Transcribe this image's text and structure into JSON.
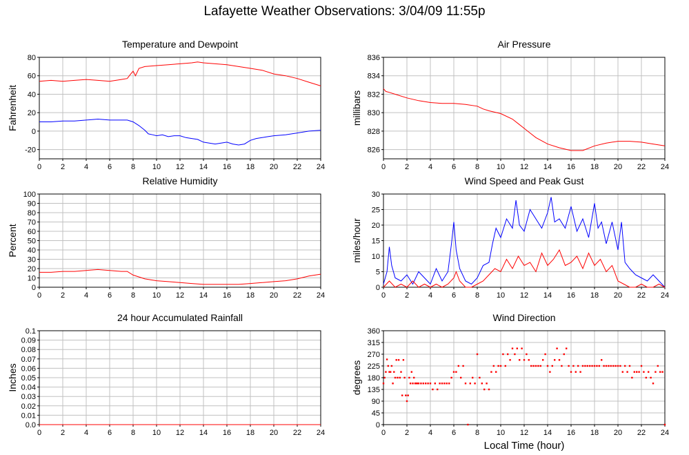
{
  "page": {
    "title": "Lafayette Weather Observations: 3/04/09 11:55p",
    "xlabel": "Local Time (hour)"
  },
  "colors": {
    "red": "#ff0000",
    "blue": "#0000ff",
    "grid": "#c0c0c0"
  },
  "chart_data": [
    {
      "type": "line",
      "title": "Temperature and Dewpoint",
      "ylabel": "Fahrenheit",
      "xlim": [
        0,
        24
      ],
      "ylim": [
        -30,
        80
      ],
      "xticks": [
        0,
        2,
        4,
        6,
        8,
        10,
        12,
        14,
        16,
        18,
        20,
        22,
        24
      ],
      "yticks": [
        -20,
        0,
        20,
        40,
        60,
        80
      ],
      "grid": true,
      "series": [
        {
          "color": "red",
          "x": [
            0,
            1,
            2,
            3,
            4,
            5,
            6,
            7,
            7.5,
            7.8,
            8.0,
            8.2,
            8.5,
            9,
            10,
            11,
            12,
            13,
            13.5,
            14,
            15,
            16,
            17,
            18,
            19,
            20,
            21,
            22,
            23,
            24
          ],
          "y": [
            54,
            55,
            54,
            55,
            56,
            55,
            54,
            56,
            57,
            62,
            65,
            60,
            68,
            70,
            71,
            72,
            73,
            74,
            75,
            74,
            73,
            72,
            70,
            68,
            66,
            62,
            60,
            57,
            53,
            49
          ]
        },
        {
          "color": "blue",
          "x": [
            0,
            1,
            2,
            3,
            4,
            5,
            6,
            7,
            7.5,
            8,
            8.5,
            9,
            9.3,
            9.7,
            10,
            10.5,
            11,
            11.5,
            12,
            12.5,
            13,
            13.5,
            14,
            14.5,
            15,
            15.5,
            16,
            16.5,
            17,
            17.5,
            18,
            18.5,
            19,
            19.5,
            20,
            21,
            22,
            23,
            24
          ],
          "y": [
            10,
            10,
            11,
            11,
            12,
            13,
            12,
            12,
            12,
            10,
            6,
            1,
            -3,
            -4,
            -5,
            -4,
            -6,
            -5,
            -5,
            -7,
            -8,
            -9,
            -12,
            -13,
            -14,
            -13,
            -12,
            -14,
            -15,
            -14,
            -10,
            -8,
            -7,
            -6,
            -5,
            -4,
            -2,
            0,
            1
          ]
        }
      ]
    },
    {
      "type": "line",
      "title": "Air Pressure",
      "ylabel": "millibars",
      "xlim": [
        0,
        24
      ],
      "ylim": [
        825,
        836
      ],
      "xticks": [
        0,
        2,
        4,
        6,
        8,
        10,
        12,
        14,
        16,
        18,
        20,
        22,
        24
      ],
      "yticks": [
        826,
        828,
        830,
        832,
        834,
        836
      ],
      "grid": true,
      "series": [
        {
          "color": "red",
          "x": [
            0,
            0.2,
            0.5,
            1,
            2,
            3,
            4,
            5,
            6,
            7,
            8,
            8.5,
            9,
            10,
            11,
            11.5,
            12,
            12.5,
            13,
            14,
            15,
            16,
            17,
            18,
            19,
            20,
            21,
            22,
            23,
            24
          ],
          "y": [
            832.6,
            832.3,
            832.2,
            832.0,
            831.6,
            831.3,
            831.1,
            831.0,
            831.0,
            830.9,
            830.7,
            830.4,
            830.2,
            829.9,
            829.3,
            828.8,
            828.3,
            827.8,
            827.3,
            826.6,
            826.2,
            825.9,
            825.9,
            826.4,
            826.7,
            826.9,
            826.9,
            826.8,
            826.6,
            826.4
          ]
        }
      ]
    },
    {
      "type": "line",
      "title": "Relative Humidity",
      "ylabel": "Percent",
      "xlim": [
        0,
        24
      ],
      "ylim": [
        0,
        100
      ],
      "xticks": [
        0,
        2,
        4,
        6,
        8,
        10,
        12,
        14,
        16,
        18,
        20,
        22,
        24
      ],
      "yticks": [
        0,
        10,
        20,
        30,
        40,
        50,
        60,
        70,
        80,
        90,
        100
      ],
      "grid": true,
      "series": [
        {
          "color": "red",
          "x": [
            0,
            1,
            2,
            3,
            4,
            5,
            6,
            7,
            7.5,
            8,
            8.5,
            9,
            10,
            11,
            12,
            13,
            14,
            15,
            16,
            17,
            18,
            19,
            20,
            21,
            22,
            23,
            24
          ],
          "y": [
            16,
            16,
            17,
            17,
            18,
            19,
            18,
            17,
            17,
            13,
            11,
            9,
            7,
            6,
            5,
            4,
            3,
            3,
            3,
            3,
            4,
            5,
            6,
            7,
            9,
            12,
            14
          ]
        }
      ]
    },
    {
      "type": "line",
      "title": "Wind Speed and Peak Gust",
      "ylabel": "miles/hour",
      "xlim": [
        0,
        24
      ],
      "ylim": [
        0,
        30
      ],
      "xticks": [
        0,
        2,
        4,
        6,
        8,
        10,
        12,
        14,
        16,
        18,
        20,
        22,
        24
      ],
      "yticks": [
        0,
        5,
        10,
        15,
        20,
        25,
        30
      ],
      "grid": true,
      "series": [
        {
          "color": "blue",
          "x": [
            0,
            0.3,
            0.5,
            0.7,
            1,
            1.5,
            2,
            2.5,
            3,
            3.5,
            4,
            4.5,
            5,
            5.5,
            5.8,
            6,
            6.2,
            6.5,
            7,
            7.5,
            8,
            8.5,
            9,
            9.3,
            9.6,
            10,
            10.5,
            11,
            11.3,
            11.6,
            12,
            12.5,
            13,
            13.5,
            14,
            14.3,
            14.6,
            15,
            15.5,
            16,
            16.5,
            17,
            17.5,
            18,
            18.3,
            18.6,
            19,
            19.5,
            20,
            20.3,
            20.6,
            21,
            21.5,
            22,
            22.5,
            23,
            23.5,
            24
          ],
          "y": [
            1,
            5,
            13,
            7,
            3,
            2,
            4,
            1,
            5,
            3,
            1,
            6,
            2,
            5,
            14,
            21,
            12,
            6,
            2,
            1,
            3,
            7,
            8,
            14,
            19,
            16,
            22,
            19,
            28,
            20,
            18,
            25,
            22,
            19,
            24,
            29,
            21,
            22,
            19,
            26,
            18,
            22,
            16,
            27,
            19,
            21,
            14,
            21,
            12,
            21,
            8,
            6,
            4,
            3,
            2,
            4,
            2,
            0
          ]
        },
        {
          "color": "red",
          "x": [
            0,
            0.5,
            1,
            1.5,
            2,
            2.5,
            3,
            3.5,
            4,
            4.5,
            5,
            5.5,
            6,
            6.2,
            6.5,
            7,
            7.5,
            8,
            8.5,
            9,
            9.5,
            10,
            10.5,
            11,
            11.5,
            12,
            12.5,
            13,
            13.5,
            14,
            14.5,
            15,
            15.5,
            16,
            16.5,
            17,
            17.5,
            18,
            18.5,
            19,
            19.5,
            20,
            20.5,
            21,
            21.5,
            22,
            22.5,
            23,
            23.5,
            24
          ],
          "y": [
            0,
            2,
            0,
            1,
            0,
            2,
            0,
            1,
            0,
            1,
            0,
            1,
            3,
            5,
            2,
            0,
            0,
            1,
            2,
            4,
            6,
            5,
            9,
            6,
            10,
            7,
            8,
            5,
            11,
            7,
            9,
            12,
            7,
            8,
            10,
            6,
            11,
            7,
            9,
            5,
            7,
            2,
            1,
            0,
            0,
            1,
            0,
            0,
            1,
            0
          ]
        }
      ]
    },
    {
      "type": "line",
      "title": "24 hour Accumulated Rainfall",
      "ylabel": "Inches",
      "xlim": [
        0,
        24
      ],
      "ylim": [
        0,
        0.1
      ],
      "xticks": [
        0,
        2,
        4,
        6,
        8,
        10,
        12,
        14,
        16,
        18,
        20,
        22,
        24
      ],
      "yticks": [
        "0.0",
        "0.01",
        "0.02",
        "0.03",
        "0.04",
        "0.05",
        "0.06",
        "0.07",
        "0.08",
        "0.09",
        "0.1"
      ],
      "grid": true,
      "series": [
        {
          "color": "red",
          "x": [
            0,
            24
          ],
          "y": [
            0,
            0
          ]
        }
      ]
    },
    {
      "type": "scatter",
      "title": "Wind Direction",
      "ylabel": "degrees",
      "xlabel": "Local Time (hour)",
      "xlim": [
        0,
        24
      ],
      "ylim": [
        0,
        360
      ],
      "xticks": [
        0,
        2,
        4,
        6,
        8,
        10,
        12,
        14,
        16,
        18,
        20,
        22,
        24
      ],
      "yticks": [
        0,
        45,
        90,
        135,
        180,
        225,
        270,
        315,
        360
      ],
      "grid": true,
      "series": [
        {
          "color": "red",
          "x": [
            0,
            0.1,
            0.2,
            0.3,
            0.4,
            0.5,
            0.6,
            0.7,
            0.8,
            0.9,
            1.0,
            1.1,
            1.2,
            1.3,
            1.4,
            1.5,
            1.6,
            1.7,
            1.8,
            1.9,
            2.0,
            2.1,
            2.2,
            2.3,
            2.4,
            2.5,
            2.6,
            2.7,
            2.8,
            2.9,
            3.0,
            3.2,
            3.4,
            3.6,
            3.8,
            4.0,
            4.2,
            4.4,
            4.6,
            4.8,
            5.0,
            5.2,
            5.4,
            5.6,
            5.8,
            6.0,
            6.2,
            6.4,
            6.6,
            6.8,
            7.0,
            7.2,
            7.4,
            7.6,
            7.8,
            8.0,
            8.2,
            8.4,
            8.6,
            8.8,
            9.0,
            9.2,
            9.4,
            9.6,
            9.8,
            10.0,
            10.2,
            10.4,
            10.6,
            10.8,
            11.0,
            11.2,
            11.4,
            11.6,
            11.8,
            12.0,
            12.2,
            12.4,
            12.6,
            12.8,
            13.0,
            13.2,
            13.4,
            13.6,
            13.8,
            14.0,
            14.2,
            14.4,
            14.6,
            14.8,
            15.0,
            15.2,
            15.4,
            15.6,
            15.8,
            16.0,
            16.2,
            16.4,
            16.6,
            16.8,
            17.0,
            17.2,
            17.4,
            17.6,
            17.8,
            18.0,
            18.2,
            18.4,
            18.6,
            18.8,
            19.0,
            19.2,
            19.4,
            19.6,
            19.8,
            20.0,
            20.2,
            20.4,
            20.6,
            20.8,
            21.0,
            21.2,
            21.4,
            21.6,
            21.8,
            22.0,
            22.2,
            22.4,
            22.6,
            22.8,
            23.0,
            23.2,
            23.4,
            23.6,
            23.8,
            24.0
          ],
          "y": [
            158,
            180,
            202,
            250,
            225,
            202,
            202,
            225,
            158,
            202,
            180,
            248,
            180,
            248,
            180,
            202,
            112,
            248,
            180,
            112,
            90,
            112,
            180,
            158,
            202,
            158,
            180,
            158,
            158,
            158,
            158,
            158,
            158,
            158,
            158,
            158,
            135,
            158,
            135,
            158,
            158,
            158,
            158,
            158,
            180,
            202,
            202,
            225,
            180,
            225,
            158,
            0,
            158,
            180,
            158,
            270,
            180,
            158,
            135,
            158,
            135,
            202,
            225,
            202,
            225,
            225,
            270,
            225,
            270,
            248,
            292,
            270,
            292,
            248,
            292,
            248,
            270,
            248,
            225,
            225,
            225,
            225,
            225,
            248,
            270,
            225,
            202,
            225,
            248,
            292,
            248,
            225,
            270,
            292,
            225,
            202,
            225,
            202,
            225,
            202,
            225,
            225,
            225,
            225,
            225,
            225,
            225,
            225,
            248,
            225,
            225,
            225,
            225,
            225,
            225,
            225,
            225,
            202,
            225,
            202,
            225,
            180,
            202,
            202,
            202,
            225,
            202,
            180,
            202,
            180,
            158,
            202,
            225,
            202,
            202,
            0
          ]
        }
      ]
    }
  ]
}
